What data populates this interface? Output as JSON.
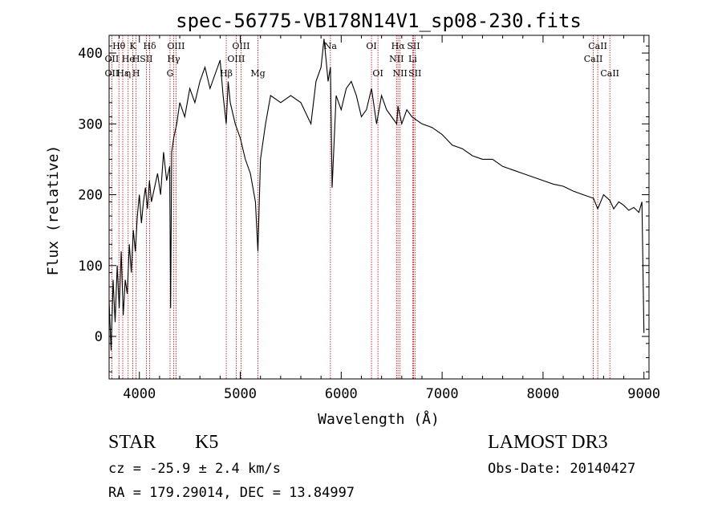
{
  "chart_data": {
    "type": "line",
    "title": "spec-56775-VB178N14V1_sp08-230.fits",
    "xlabel": "Wavelength (Å)",
    "ylabel": "Flux (relative)",
    "xlim": [
      3700,
      9050
    ],
    "ylim": [
      -60,
      425
    ],
    "xticks": [
      4000,
      5000,
      6000,
      7000,
      8000,
      9000
    ],
    "yticks": [
      0,
      100,
      200,
      300,
      400
    ],
    "grid": false,
    "line_color": "#000000",
    "marker_color": "#c00000",
    "series": [
      {
        "x": [
          3700,
          3720,
          3740,
          3760,
          3780,
          3800,
          3820,
          3840,
          3860,
          3880,
          3900,
          3920,
          3940,
          3960,
          3980,
          4000,
          4020,
          4040,
          4060,
          4080,
          4100,
          4120,
          4150,
          4180,
          4210,
          4240,
          4270,
          4300,
          4310,
          4320,
          4340,
          4370,
          4400,
          4450,
          4500,
          4550,
          4600,
          4650,
          4700,
          4750,
          4800,
          4830,
          4861,
          4880,
          4900,
          4950,
          5000,
          5050,
          5100,
          5150,
          5175,
          5200,
          5250,
          5300,
          5400,
          5500,
          5600,
          5700,
          5750,
          5800,
          5830,
          5850,
          5870,
          5893,
          5910,
          5950,
          6000,
          6050,
          6100,
          6150,
          6200,
          6250,
          6300,
          6350,
          6400,
          6450,
          6500,
          6550,
          6563,
          6600,
          6650,
          6700,
          6750,
          6800,
          6900,
          7000,
          7100,
          7200,
          7300,
          7400,
          7500,
          7600,
          7700,
          7800,
          7900,
          8000,
          8100,
          8200,
          8300,
          8400,
          8500,
          8542,
          8600,
          8662,
          8700,
          8750,
          8800,
          8850,
          8900,
          8950,
          8980,
          9000
        ],
        "y": [
          50,
          -20,
          80,
          20,
          100,
          40,
          120,
          30,
          80,
          60,
          130,
          90,
          150,
          120,
          170,
          200,
          160,
          190,
          210,
          180,
          220,
          190,
          210,
          230,
          200,
          260,
          220,
          240,
          40,
          260,
          280,
          300,
          330,
          310,
          350,
          330,
          360,
          380,
          350,
          370,
          390,
          340,
          300,
          360,
          330,
          300,
          280,
          250,
          230,
          190,
          120,
          250,
          300,
          340,
          330,
          340,
          330,
          300,
          360,
          380,
          420,
          390,
          360,
          380,
          210,
          340,
          320,
          350,
          360,
          340,
          310,
          320,
          350,
          300,
          340,
          320,
          310,
          300,
          325,
          300,
          320,
          310,
          305,
          300,
          295,
          285,
          270,
          265,
          255,
          250,
          250,
          240,
          235,
          230,
          225,
          220,
          215,
          212,
          205,
          200,
          195,
          180,
          200,
          192,
          180,
          190,
          185,
          178,
          182,
          175,
          190,
          5
        ]
      }
    ],
    "lines_row1": [
      {
        "label": "Hθ",
        "x": 3797
      },
      {
        "label": "K",
        "x": 3934
      },
      {
        "label": "Hδ",
        "x": 4102
      },
      {
        "label": "OIII",
        "x": 4363
      },
      {
        "label": "OIII",
        "x": 5007
      },
      {
        "label": "Na",
        "x": 5893
      },
      {
        "label": "OI",
        "x": 6300
      },
      {
        "label": "Hα",
        "x": 6563
      },
      {
        "label": "SII",
        "x": 6717
      },
      {
        "label": "CaII",
        "x": 8542
      }
    ],
    "lines_row2": [
      {
        "label": "OII",
        "x": 3727
      },
      {
        "label": "He",
        "x": 3889
      },
      {
        "label": "H",
        "x": 3968
      },
      {
        "label": "SII",
        "x": 4069
      },
      {
        "label": "Hγ",
        "x": 4340
      },
      {
        "label": "OIII",
        "x": 4959
      },
      {
        "label": "NII",
        "x": 6548
      },
      {
        "label": "Li",
        "x": 6708
      },
      {
        "label": "CaII",
        "x": 8498
      }
    ],
    "lines_row3": [
      {
        "label": "OII",
        "x": 3727
      },
      {
        "label": "Hε",
        "x": 3835
      },
      {
        "label": "η",
        "x": 3889
      },
      {
        "label": "H",
        "x": 3968
      },
      {
        "label": "G",
        "x": 4304
      },
      {
        "label": "Hβ",
        "x": 4861
      },
      {
        "label": "Mg",
        "x": 5175
      },
      {
        "label": "OI",
        "x": 6364
      },
      {
        "label": "NII",
        "x": 6583
      },
      {
        "label": "SII",
        "x": 6731
      },
      {
        "label": "CaII",
        "x": 8662
      }
    ]
  },
  "info": {
    "object_class": "STAR",
    "subclass": "K5",
    "survey": "LAMOST DR3",
    "cz": "cz = -25.9 ± 2.4 km/s",
    "obs_date": "Obs-Date: 20140427",
    "coords": "RA = 179.29014, DEC =  13.84997"
  }
}
